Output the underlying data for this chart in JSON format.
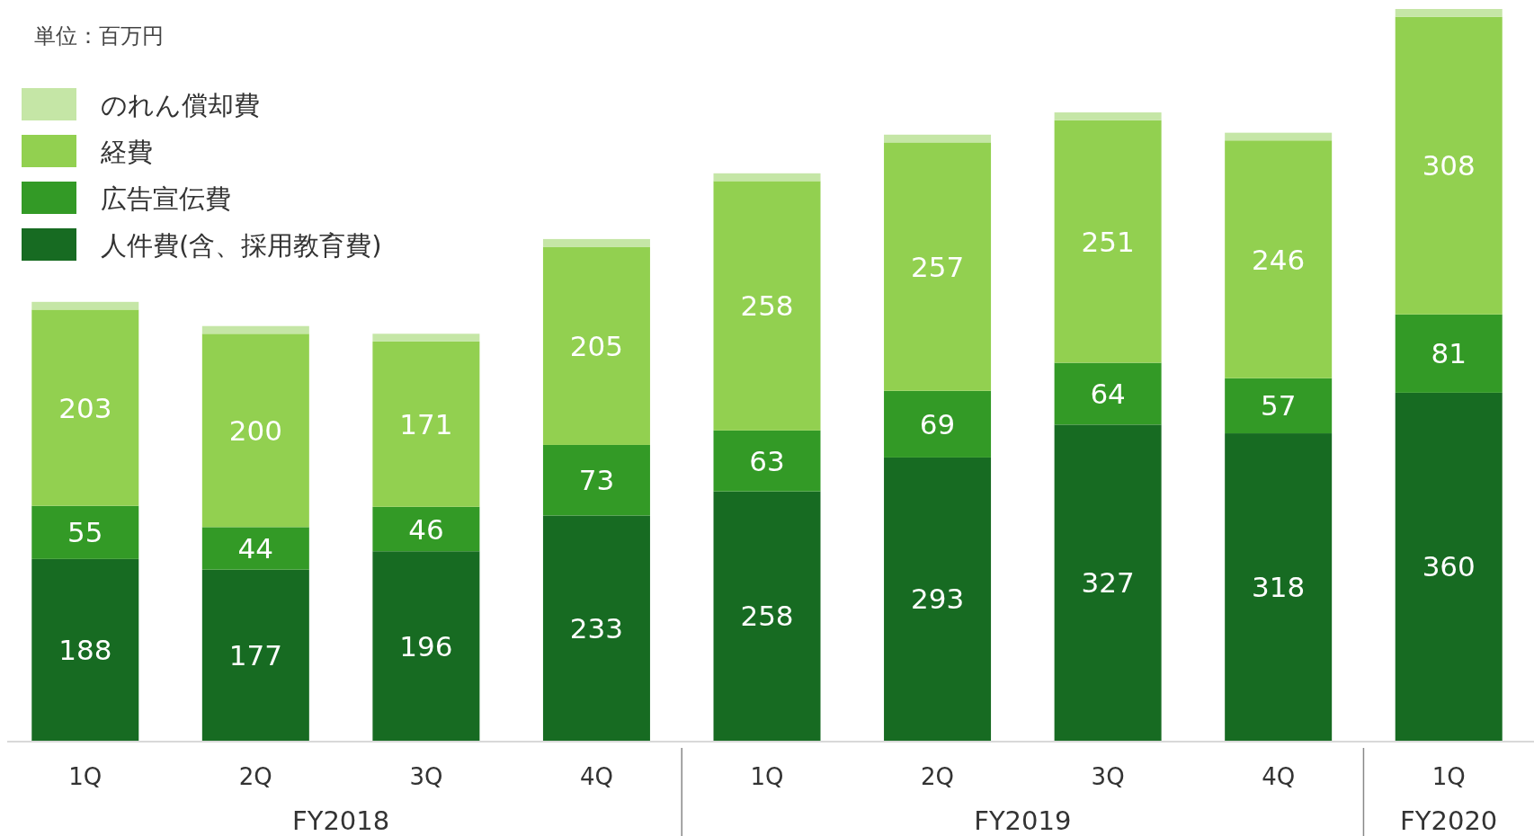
{
  "chart_data": {
    "type": "bar",
    "stacked": true,
    "title": "単位：百万円",
    "categories": [
      "1Q",
      "2Q",
      "3Q",
      "4Q",
      "1Q",
      "2Q",
      "3Q",
      "4Q",
      "1Q"
    ],
    "series": [
      {
        "name": "人件費(含、採用教育費)",
        "color": "#176b22",
        "values": [
          188,
          177,
          196,
          233,
          258,
          293,
          327,
          318,
          360
        ],
        "value_labels": [
          "188",
          "177",
          "196",
          "233",
          "258",
          "293",
          "327",
          "318",
          "360"
        ]
      },
      {
        "name": "広告宣伝費",
        "color": "#339a26",
        "values": [
          55,
          44,
          46,
          73,
          63,
          69,
          64,
          57,
          81
        ],
        "value_labels": [
          "55",
          "44",
          "46",
          "73",
          "63",
          "69",
          "64",
          "57",
          "81"
        ]
      },
      {
        "name": "経費",
        "color": "#92d050",
        "values": [
          203,
          200,
          171,
          205,
          258,
          257,
          251,
          246,
          308
        ],
        "value_labels": [
          "203",
          "200",
          "171",
          "205",
          "258",
          "257",
          "251",
          "246",
          "308"
        ]
      },
      {
        "name": "のれん償却費",
        "color": "#c5e6a6",
        "values": [
          8,
          8,
          8,
          8,
          8,
          8,
          8,
          8,
          8
        ]
      }
    ],
    "annotations": [
      "FY2018",
      "FY2019",
      "FY2020"
    ],
    "legend": "top left"
  }
}
